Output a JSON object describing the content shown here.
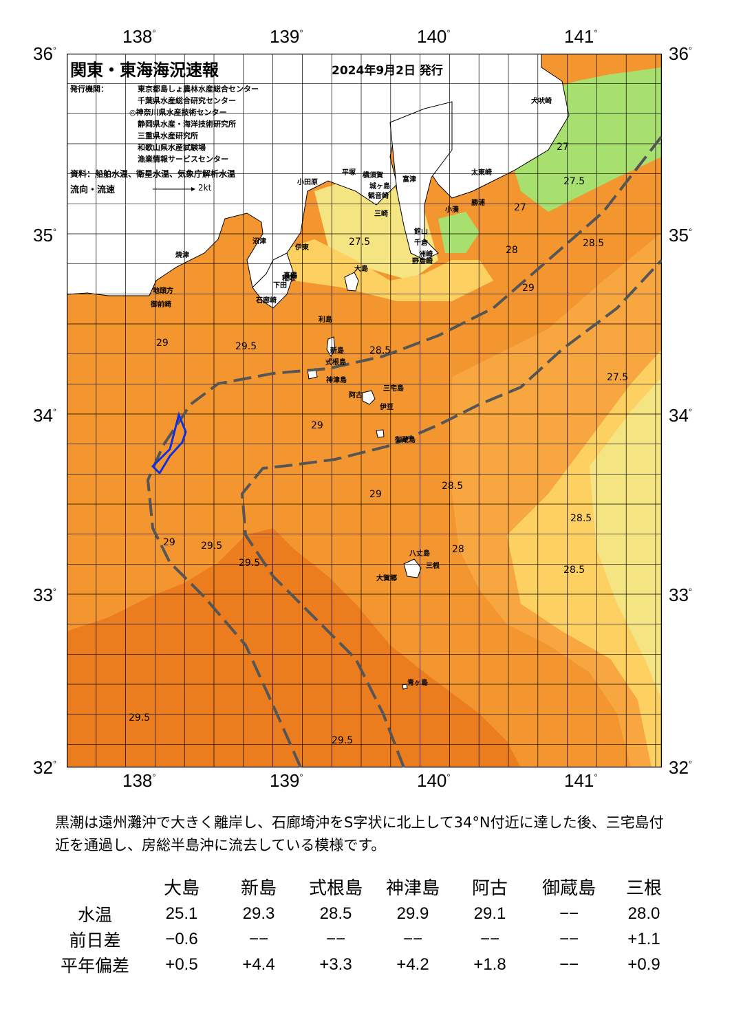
{
  "map": {
    "title": "関東・東海海況速報",
    "issue_date": "2024年9月2日 発行",
    "issuers_label": "発行機関：",
    "issuers": [
      "東京都島しょ農林水産総合センター",
      "千葉県水産総合研究センター",
      "◎神奈川県水産技術センター",
      "静岡県水産・海洋技術研究所",
      "三重県水産研究所",
      "和歌山県水産試験場",
      "漁業情報サービスセンター"
    ],
    "source": "資料：船舶水温、衛星水温、気象庁解析水温",
    "flow_legend_label": "流向・流速",
    "flow_legend_value": "2kt",
    "lon_ticks": [
      "138",
      "139",
      "140",
      "141"
    ],
    "lat_ticks": [
      "36",
      "35",
      "34",
      "33",
      "32"
    ],
    "places": [
      "犬吠崎",
      "太東崎",
      "勝浦",
      "小湊",
      "洲崎",
      "野島崎",
      "館山",
      "千倉",
      "富津",
      "横須賀",
      "観音崎",
      "城ヶ島",
      "三崎",
      "平塚",
      "小田原",
      "真鶴",
      "沼津",
      "伊東",
      "稲取",
      "下田",
      "石廊崎",
      "御前崎",
      "地頭方",
      "焼津",
      "大島",
      "利島",
      "新島",
      "式根島",
      "神津島",
      "三宅島",
      "阿古",
      "伊豆",
      "御蔵島",
      "八丈島",
      "三根",
      "大賀郷",
      "青ヶ島"
    ],
    "contour_labels": [
      "27",
      "27.5",
      "28",
      "28.5",
      "29",
      "29.5"
    ],
    "colors": {
      "t_27": "#a8e070",
      "t_275": "#f5e582",
      "t_28": "#fcd061",
      "t_285": "#f7a640",
      "t_29": "#f4962f",
      "t_295": "#ec7d1e",
      "land": "#ffffff",
      "kuroshio": "#555555"
    }
  },
  "summary": "黒潮は遠州灘沖で大きく離岸し、石廊埼沖をS字状に北上して34°N付近に達した後、三宅島付近を通過し、房総半島沖に流去している模様です。",
  "stations": {
    "headers": [
      "大島",
      "新島",
      "式根島",
      "神津島",
      "阿古",
      "御蔵島",
      "三根"
    ],
    "rows": [
      {
        "label": "水温",
        "values": [
          "25.1",
          "29.3",
          "28.5",
          "29.9",
          "29.1",
          "−−",
          "28.0"
        ]
      },
      {
        "label": "前日差",
        "values": [
          "−0.6",
          "−−",
          "−−",
          "−−",
          "−−",
          "−−",
          "+1.1"
        ]
      },
      {
        "label": "平年偏差",
        "values": [
          "+0.5",
          "+4.4",
          "+3.3",
          "+4.2",
          "+1.8",
          "−−",
          "+0.9"
        ]
      }
    ]
  }
}
